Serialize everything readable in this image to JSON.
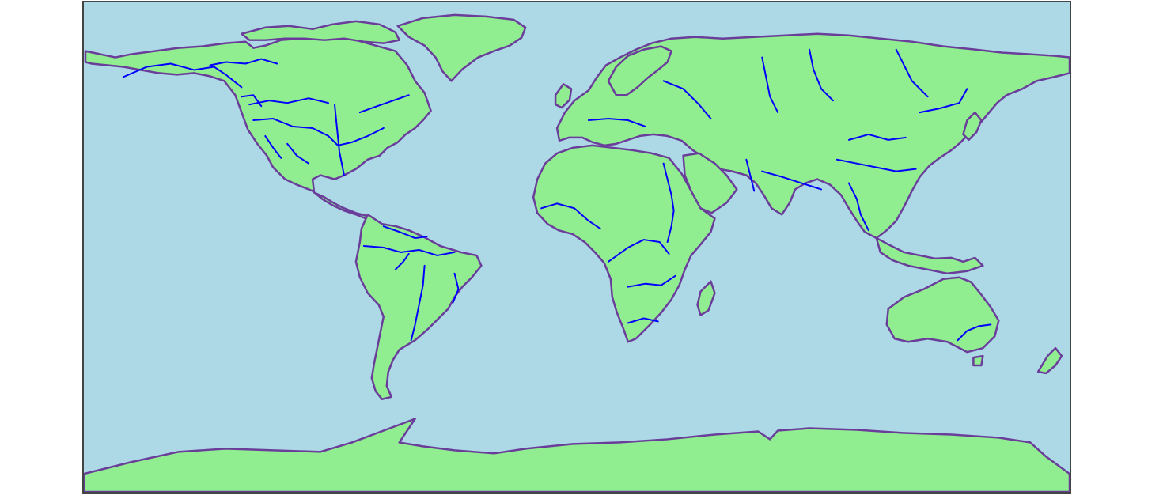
{
  "map": {
    "projection": "equirectangular",
    "extent": {
      "lon": [
        -180,
        180
      ],
      "lat": [
        -90,
        90
      ]
    },
    "colors": {
      "ocean": "#add8e6",
      "land": "#90ee90",
      "coastline": "#6a3d9a",
      "rivers": "#0000ff",
      "frame": "#444444"
    },
    "layers": [
      "ocean",
      "land",
      "coastline",
      "rivers"
    ]
  }
}
